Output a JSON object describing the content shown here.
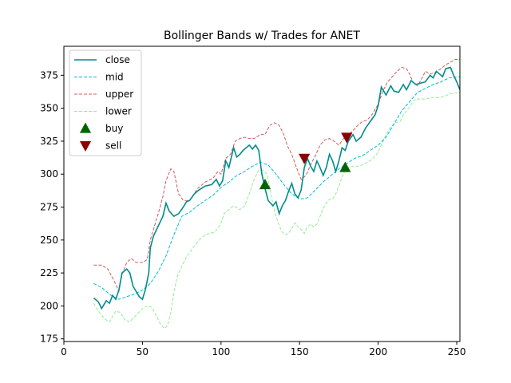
{
  "chart_data": {
    "type": "line",
    "title": "Bollinger Bands w/ Trades for ANET",
    "xlabel": "",
    "ylabel": "",
    "xlim": [
      0,
      252
    ],
    "ylim": [
      173,
      397
    ],
    "xticks": [
      0,
      50,
      100,
      150,
      200,
      250
    ],
    "yticks": [
      175,
      200,
      225,
      250,
      275,
      300,
      325,
      350,
      375
    ],
    "grid": false,
    "legend_position": "top-left",
    "colors": {
      "close": "#008b8b",
      "mid": "#00bcd4",
      "upper": "#cd5c5c",
      "lower": "#90ee90",
      "buy": "#006400",
      "sell": "#8b0000"
    },
    "series": [
      {
        "name": "close",
        "style": "solid",
        "points": [
          [
            19,
            206
          ],
          [
            22,
            203
          ],
          [
            24,
            198
          ],
          [
            27,
            204
          ],
          [
            29,
            202
          ],
          [
            31,
            208
          ],
          [
            33,
            205
          ],
          [
            35,
            212
          ],
          [
            37,
            225
          ],
          [
            40,
            228
          ],
          [
            42,
            225
          ],
          [
            44,
            215
          ],
          [
            46,
            211
          ],
          [
            48,
            207
          ],
          [
            50,
            205
          ],
          [
            52,
            213
          ],
          [
            54,
            225
          ],
          [
            55,
            244
          ],
          [
            57,
            253
          ],
          [
            59,
            258
          ],
          [
            61,
            263
          ],
          [
            63,
            268
          ],
          [
            65,
            278
          ],
          [
            67,
            272
          ],
          [
            70,
            268
          ],
          [
            73,
            270
          ],
          [
            76,
            275
          ],
          [
            78,
            279
          ],
          [
            80,
            280
          ],
          [
            83,
            285
          ],
          [
            86,
            288
          ],
          [
            90,
            291
          ],
          [
            94,
            292
          ],
          [
            97,
            296
          ],
          [
            99,
            291
          ],
          [
            101,
            295
          ],
          [
            103,
            310
          ],
          [
            105,
            305
          ],
          [
            108,
            320
          ],
          [
            110,
            313
          ],
          [
            112,
            315
          ],
          [
            114,
            318
          ],
          [
            116,
            320
          ],
          [
            118,
            322
          ],
          [
            120,
            319
          ],
          [
            122,
            322
          ],
          [
            124,
            318
          ],
          [
            126,
            300
          ],
          [
            128,
            289
          ],
          [
            130,
            280
          ],
          [
            133,
            276
          ],
          [
            135,
            279
          ],
          [
            137,
            270
          ],
          [
            139,
            276
          ],
          [
            141,
            280
          ],
          [
            143,
            287
          ],
          [
            145,
            293
          ],
          [
            147,
            285
          ],
          [
            149,
            282
          ],
          [
            151,
            288
          ],
          [
            153,
            305
          ],
          [
            155,
            312
          ],
          [
            157,
            306
          ],
          [
            159,
            302
          ],
          [
            161,
            310
          ],
          [
            163,
            305
          ],
          [
            165,
            299
          ],
          [
            167,
            305
          ],
          [
            169,
            315
          ],
          [
            171,
            310
          ],
          [
            173,
            302
          ],
          [
            175,
            310
          ],
          [
            177,
            320
          ],
          [
            179,
            318
          ],
          [
            181,
            325
          ],
          [
            184,
            330
          ],
          [
            186,
            325
          ],
          [
            189,
            328
          ],
          [
            192,
            335
          ],
          [
            195,
            340
          ],
          [
            198,
            345
          ],
          [
            200,
            352
          ],
          [
            202,
            366
          ],
          [
            205,
            360
          ],
          [
            208,
            367
          ],
          [
            210,
            363
          ],
          [
            213,
            362
          ],
          [
            216,
            368
          ],
          [
            218,
            364
          ],
          [
            221,
            371
          ],
          [
            224,
            368
          ],
          [
            227,
            369
          ],
          [
            230,
            370
          ],
          [
            233,
            375
          ],
          [
            235,
            373
          ],
          [
            237,
            378
          ],
          [
            239,
            376
          ],
          [
            241,
            374
          ],
          [
            243,
            380
          ],
          [
            246,
            381
          ],
          [
            248,
            375
          ],
          [
            250,
            370
          ],
          [
            252,
            364
          ]
        ]
      },
      {
        "name": "mid",
        "style": "dashed",
        "points": [
          [
            19,
            217
          ],
          [
            24,
            214
          ],
          [
            30,
            208
          ],
          [
            35,
            205
          ],
          [
            40,
            207
          ],
          [
            45,
            209
          ],
          [
            50,
            212
          ],
          [
            55,
            217
          ],
          [
            60,
            226
          ],
          [
            65,
            238
          ],
          [
            70,
            254
          ],
          [
            75,
            268
          ],
          [
            80,
            271
          ],
          [
            85,
            276
          ],
          [
            90,
            280
          ],
          [
            95,
            284
          ],
          [
            100,
            290
          ],
          [
            105,
            294
          ],
          [
            110,
            299
          ],
          [
            115,
            302
          ],
          [
            120,
            306
          ],
          [
            125,
            309
          ],
          [
            130,
            307
          ],
          [
            135,
            300
          ],
          [
            140,
            292
          ],
          [
            145,
            285
          ],
          [
            150,
            281
          ],
          [
            155,
            282
          ],
          [
            160,
            288
          ],
          [
            165,
            294
          ],
          [
            170,
            299
          ],
          [
            175,
            304
          ],
          [
            180,
            308
          ],
          [
            185,
            312
          ],
          [
            190,
            314
          ],
          [
            195,
            318
          ],
          [
            200,
            322
          ],
          [
            205,
            328
          ],
          [
            210,
            338
          ],
          [
            215,
            348
          ],
          [
            220,
            355
          ],
          [
            225,
            362
          ],
          [
            230,
            365
          ],
          [
            235,
            368
          ],
          [
            240,
            370
          ],
          [
            245,
            373
          ],
          [
            252,
            374
          ]
        ]
      },
      {
        "name": "upper",
        "style": "dashed",
        "points": [
          [
            19,
            231
          ],
          [
            24,
            231
          ],
          [
            28,
            228
          ],
          [
            32,
            219
          ],
          [
            35,
            211
          ],
          [
            37,
            224
          ],
          [
            40,
            233
          ],
          [
            43,
            236
          ],
          [
            46,
            233
          ],
          [
            50,
            233
          ],
          [
            53,
            235
          ],
          [
            55,
            250
          ],
          [
            58,
            262
          ],
          [
            61,
            274
          ],
          [
            63,
            283
          ],
          [
            65,
            295
          ],
          [
            68,
            304
          ],
          [
            70,
            302
          ],
          [
            73,
            285
          ],
          [
            76,
            280
          ],
          [
            80,
            280
          ],
          [
            85,
            289
          ],
          [
            90,
            294
          ],
          [
            95,
            297
          ],
          [
            98,
            302
          ],
          [
            100,
            300
          ],
          [
            103,
            312
          ],
          [
            106,
            315
          ],
          [
            109,
            325
          ],
          [
            112,
            327
          ],
          [
            115,
            328
          ],
          [
            118,
            327
          ],
          [
            121,
            327
          ],
          [
            125,
            330
          ],
          [
            128,
            330
          ],
          [
            131,
            337
          ],
          [
            134,
            339
          ],
          [
            137,
            337
          ],
          [
            140,
            330
          ],
          [
            142,
            322
          ],
          [
            145,
            315
          ],
          [
            148,
            305
          ],
          [
            151,
            296
          ],
          [
            154,
            299
          ],
          [
            157,
            307
          ],
          [
            160,
            314
          ],
          [
            163,
            322
          ],
          [
            166,
            326
          ],
          [
            169,
            327
          ],
          [
            172,
            325
          ],
          [
            175,
            322
          ],
          [
            178,
            327
          ],
          [
            181,
            330
          ],
          [
            184,
            333
          ],
          [
            187,
            337
          ],
          [
            190,
            340
          ],
          [
            193,
            341
          ],
          [
            196,
            345
          ],
          [
            200,
            353
          ],
          [
            203,
            363
          ],
          [
            206,
            370
          ],
          [
            209,
            374
          ],
          [
            212,
            378
          ],
          [
            215,
            381
          ],
          [
            218,
            380
          ],
          [
            220,
            376
          ],
          [
            222,
            370
          ],
          [
            225,
            367
          ],
          [
            228,
            373
          ],
          [
            230,
            378
          ],
          [
            233,
            376
          ],
          [
            236,
            377
          ],
          [
            240,
            380
          ],
          [
            243,
            383
          ],
          [
            246,
            385
          ],
          [
            249,
            387
          ],
          [
            252,
            387
          ]
        ]
      },
      {
        "name": "lower",
        "style": "dashed",
        "points": [
          [
            19,
            202
          ],
          [
            22,
            196
          ],
          [
            26,
            190
          ],
          [
            29,
            188
          ],
          [
            33,
            196
          ],
          [
            36,
            195
          ],
          [
            39,
            189
          ],
          [
            42,
            188
          ],
          [
            46,
            193
          ],
          [
            50,
            198
          ],
          [
            53,
            200
          ],
          [
            56,
            199
          ],
          [
            59,
            192
          ],
          [
            62,
            185
          ],
          [
            64,
            183
          ],
          [
            66,
            185
          ],
          [
            68,
            195
          ],
          [
            70,
            210
          ],
          [
            72,
            222
          ],
          [
            75,
            230
          ],
          [
            78,
            237
          ],
          [
            81,
            242
          ],
          [
            84,
            247
          ],
          [
            87,
            251
          ],
          [
            90,
            254
          ],
          [
            93,
            255
          ],
          [
            96,
            256
          ],
          [
            98,
            259
          ],
          [
            100,
            263
          ],
          [
            102,
            270
          ],
          [
            104,
            272
          ],
          [
            108,
            276
          ],
          [
            112,
            273
          ],
          [
            115,
            276
          ],
          [
            118,
            285
          ],
          [
            121,
            296
          ],
          [
            124,
            303
          ],
          [
            127,
            303
          ],
          [
            129,
            300
          ],
          [
            131,
            290
          ],
          [
            133,
            277
          ],
          [
            135,
            268
          ],
          [
            137,
            261
          ],
          [
            139,
            256
          ],
          [
            141,
            254
          ],
          [
            143,
            255
          ],
          [
            145,
            259
          ],
          [
            147,
            263
          ],
          [
            149,
            260
          ],
          [
            151,
            258
          ],
          [
            153,
            255
          ],
          [
            155,
            260
          ],
          [
            157,
            262
          ],
          [
            159,
            260
          ],
          [
            161,
            262
          ],
          [
            163,
            268
          ],
          [
            165,
            274
          ],
          [
            167,
            278
          ],
          [
            169,
            281
          ],
          [
            171,
            281
          ],
          [
            173,
            285
          ],
          [
            175,
            291
          ],
          [
            177,
            298
          ],
          [
            179,
            303
          ],
          [
            181,
            305
          ],
          [
            184,
            306
          ],
          [
            187,
            306
          ],
          [
            190,
            307
          ],
          [
            193,
            309
          ],
          [
            196,
            311
          ],
          [
            199,
            315
          ],
          [
            202,
            322
          ],
          [
            205,
            330
          ],
          [
            208,
            336
          ],
          [
            211,
            339
          ],
          [
            214,
            340
          ],
          [
            216,
            345
          ],
          [
            218,
            348
          ],
          [
            220,
            351
          ],
          [
            222,
            355
          ],
          [
            224,
            357
          ],
          [
            226,
            357
          ],
          [
            230,
            357
          ],
          [
            234,
            358
          ],
          [
            238,
            358
          ],
          [
            242,
            359
          ],
          [
            246,
            361
          ],
          [
            252,
            362
          ]
        ]
      }
    ],
    "markers": [
      {
        "name": "buy",
        "marker": "triangle-up",
        "points": [
          [
            128,
            292
          ],
          [
            179,
            305
          ]
        ]
      },
      {
        "name": "sell",
        "marker": "triangle-down",
        "points": [
          [
            153,
            312
          ],
          [
            180,
            328
          ]
        ]
      }
    ],
    "legend": [
      "close",
      "mid",
      "upper",
      "lower",
      "buy",
      "sell"
    ]
  }
}
